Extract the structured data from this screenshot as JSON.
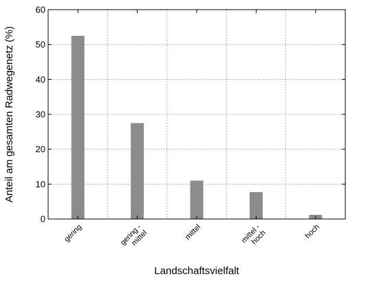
{
  "chart_data": {
    "type": "bar",
    "xlabel": "Landschaftsvielfalt",
    "ylabel": "Anteil am gesamten Radwegenetz (%)",
    "categories": [
      "gering",
      "gering - mittel",
      "mittel",
      "mittel - hoch",
      "hoch"
    ],
    "category_lines": [
      [
        "gering"
      ],
      [
        "gering -",
        "mittel"
      ],
      [
        "mittel"
      ],
      [
        "mittel -",
        "hoch"
      ],
      [
        "hoch"
      ]
    ],
    "values": [
      52.5,
      27.5,
      11,
      7.7,
      1.2
    ],
    "ylim": [
      0,
      60
    ],
    "yticks": [
      0,
      10,
      20,
      30,
      40,
      50,
      60
    ],
    "grid": true,
    "bar_color": "#8c8c8c",
    "grid_color": "#a0a0a0"
  }
}
